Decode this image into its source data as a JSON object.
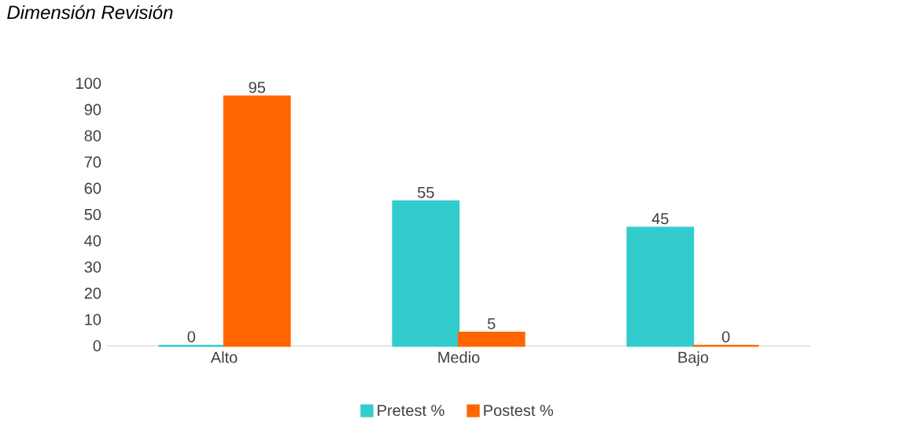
{
  "chart_data": {
    "type": "bar",
    "title": "Dimensión Revisión",
    "categories": [
      "Alto",
      "Medio",
      "Bajo"
    ],
    "series": [
      {
        "name": "Pretest %",
        "color": "#33cccc",
        "values": [
          0,
          55,
          45
        ]
      },
      {
        "name": "Postest %",
        "color": "#ff6600",
        "values": [
          95,
          5,
          0
        ]
      }
    ],
    "ylim": [
      0,
      100
    ],
    "yticks": [
      0,
      10,
      20,
      30,
      40,
      50,
      60,
      70,
      80,
      90,
      100
    ],
    "data_labels": true,
    "legend": "bottom",
    "grid": false
  }
}
